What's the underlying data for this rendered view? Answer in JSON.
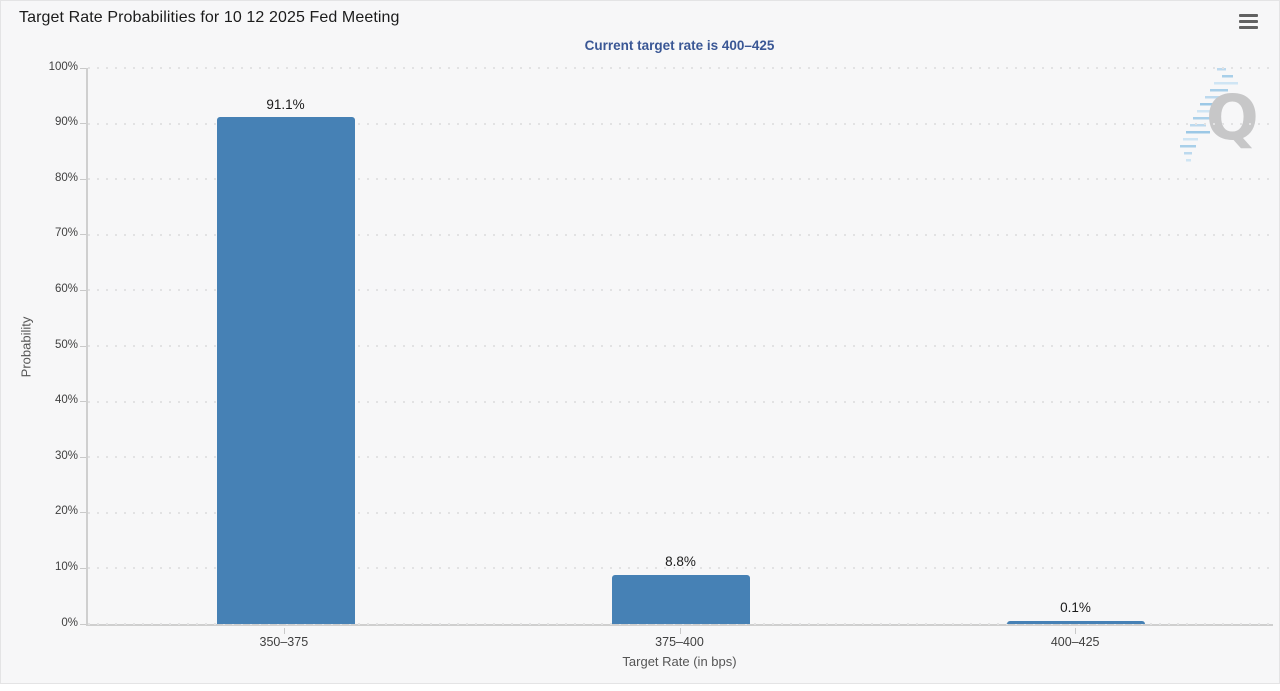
{
  "header": {
    "title": "Target Rate Probabilities for 10 12 2025 Fed Meeting",
    "menu_icon": "hamburger-menu-icon"
  },
  "subtitle": "Current target rate is 400–425",
  "watermark": {
    "letter": "Q"
  },
  "chart_data": {
    "type": "bar",
    "title": "Target Rate Probabilities for 10 12 2025 Fed Meeting",
    "subtitle": "Current target rate is 400–425",
    "categories": [
      "350–375",
      "375–400",
      "400–425"
    ],
    "values": [
      91.1,
      8.8,
      0.1
    ],
    "value_labels": [
      "91.1%",
      "8.8%",
      "0.1%"
    ],
    "xlabel": "Target Rate (in bps)",
    "ylabel": "Probability",
    "ylim": [
      0,
      100
    ],
    "ytick_step": 10,
    "ytick_labels": [
      "0%",
      "10%",
      "20%",
      "30%",
      "40%",
      "50%",
      "60%",
      "70%",
      "80%",
      "90%",
      "100%"
    ],
    "legend": "none",
    "grid": "horizontal-dotted",
    "bar_color": "#4681b5",
    "background_color": "#f7f7f8",
    "subtitle_color": "#3a5795"
  }
}
